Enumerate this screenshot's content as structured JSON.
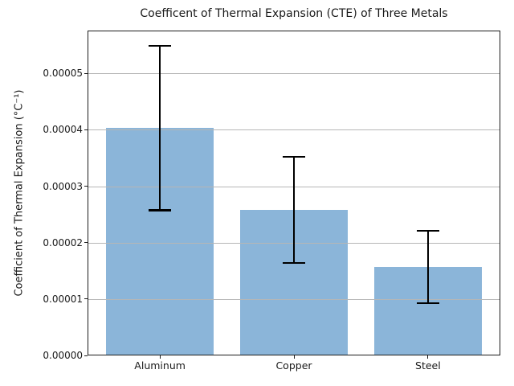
{
  "chart_data": {
    "type": "bar",
    "title": "Coefficent of Thermal Expansion (CTE) of Three Metals",
    "ylabel": "Coefficient of Thermal Expansion (°C⁻¹)",
    "xlabel": "",
    "categories": [
      "Aluminum",
      "Copper",
      "Steel"
    ],
    "values": [
      4.03e-05,
      2.58e-05,
      1.57e-05
    ],
    "errors": [
      1.46e-05,
      9.4e-06,
      6.4e-06
    ],
    "ylim": [
      0,
      5.76e-05
    ],
    "ytick_values": [
      0,
      1e-05,
      2e-05,
      3e-05,
      4e-05,
      5e-05
    ],
    "yticks": [
      "0.00000",
      "0.00001",
      "0.00002",
      "0.00003",
      "0.00004",
      "0.00005"
    ],
    "grid": true,
    "grid_axis": "y",
    "legend": false,
    "bar_color": "#8bb5d9",
    "error_color": "#000000",
    "grid_color": "#b6b6b6",
    "frame_color": "#1c1c1c"
  }
}
